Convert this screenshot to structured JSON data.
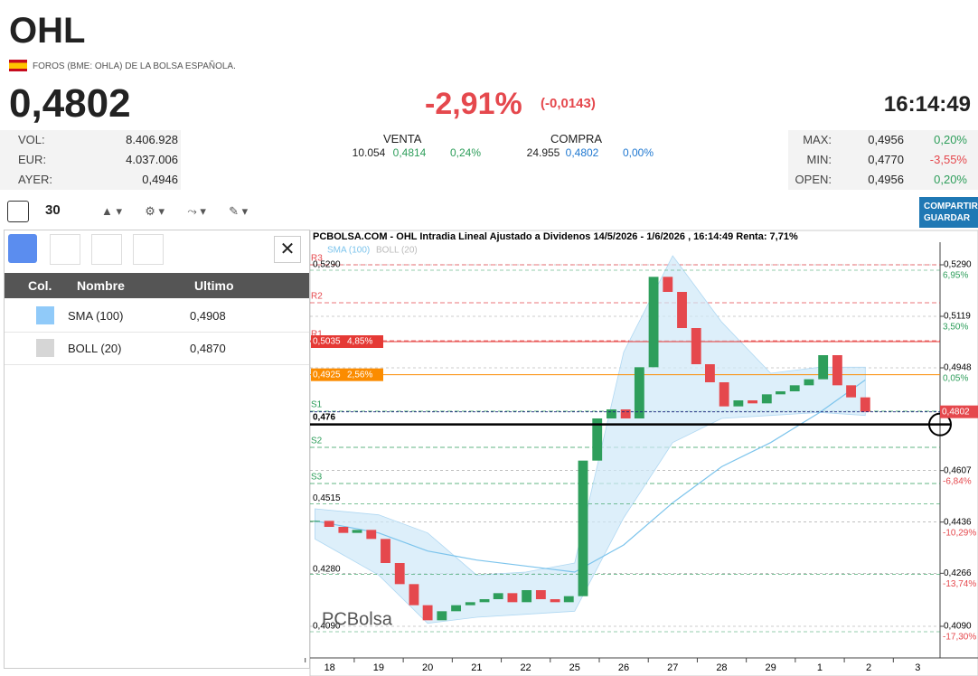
{
  "header": {
    "ticker": "OHL",
    "exchange": "FOROS (BME: OHLA) DE LA BOLSA ESPAÑOLA.",
    "price": "0,4802",
    "change_pct": "-2,91%",
    "change_abs": "(-0,0143)",
    "time": "16:14:49"
  },
  "stats_left": [
    [
      "VOL:",
      "8.406.928"
    ],
    [
      "EUR:",
      "4.037.006"
    ],
    [
      "AYER:",
      "0,4946"
    ]
  ],
  "order_book": {
    "sell_label": "VENTA",
    "buy_label": "COMPRA",
    "row": [
      "10.054",
      "0,4814",
      "0,24%",
      "24.955",
      "0,4802",
      "0,00%"
    ]
  },
  "stats_right": [
    [
      "MAX:",
      "0,4956",
      "0,20%"
    ],
    [
      "MIN:",
      "0,4770",
      "-3,55%"
    ],
    [
      "OPEN:",
      "0,4956",
      "0,20%"
    ]
  ],
  "toolbar": {
    "period": "30",
    "share_button": [
      "COMPARTIR",
      "GUARDAR"
    ]
  },
  "panel": {
    "columns": [
      "Col.",
      "Nombre",
      "Ultimo"
    ],
    "rows": [
      {
        "color": "#90caf9",
        "name": "SMA (100)",
        "last": "0,4908"
      },
      {
        "color": "#d6d6d6",
        "name": "BOLL (20)",
        "last": "0,4870"
      }
    ]
  },
  "chart_data": {
    "type": "candlestick",
    "title": "PCBOLSA.COM - OHL Intradia Lineal Ajustado a Dividenos 14/5/2026 - 1/6/2026 , 16:14:49 Renta: 7,71%",
    "legend": [
      "SMA (100)",
      "BOLL (20)"
    ],
    "xlim": [
      -0.4,
      12.4
    ],
    "xticks": [
      {
        "value": 0,
        "label": "18"
      },
      {
        "value": 1,
        "label": "19"
      },
      {
        "value": 2,
        "label": "20"
      },
      {
        "value": 3,
        "label": "21"
      },
      {
        "value": 4,
        "label": "22"
      },
      {
        "value": 5,
        "label": "25"
      },
      {
        "value": 6,
        "label": "26"
      },
      {
        "value": 7,
        "label": "27"
      },
      {
        "value": 8,
        "label": "28"
      },
      {
        "value": 9,
        "label": "29"
      },
      {
        "value": 10,
        "label": "1"
      },
      {
        "value": 11,
        "label": "2"
      },
      {
        "value": 12,
        "label": "3"
      }
    ],
    "ylim": [
      0.3994,
      0.5359
    ],
    "yticks": [
      {
        "value": 0.529,
        "label": "0,5290"
      },
      {
        "value": 0.5119,
        "label": "0,5119"
      },
      {
        "value": 0.4948,
        "label": "0,4948"
      },
      {
        "value": 0.4607,
        "label": "0,4607"
      },
      {
        "value": 0.4436,
        "label": "0,4436"
      },
      {
        "value": 0.4266,
        "label": "0,4266"
      },
      {
        "value": 0.409,
        "label": "0,4090"
      }
    ],
    "ytick_pct": [
      "6,95%",
      "3,50%",
      "0,05%",
      "-6,84%",
      "-10,29%",
      "-13,74%",
      "-17,30%"
    ],
    "x": [
      -0.3,
      -0.01,
      0.28,
      0.56,
      0.85,
      1.14,
      1.43,
      1.72,
      2.0,
      2.29,
      2.58,
      2.87,
      3.16,
      3.44,
      3.73,
      4.02,
      4.31,
      4.6,
      4.88,
      5.17,
      5.46,
      5.75,
      6.04,
      6.32,
      6.61,
      6.9,
      7.19,
      7.48,
      7.76,
      8.05,
      8.34,
      8.63,
      8.92,
      9.2,
      9.49,
      9.78,
      10.07,
      10.36,
      10.64,
      10.93
    ],
    "close": [
      0.444,
      0.442,
      0.44,
      0.441,
      0.438,
      0.43,
      0.423,
      0.416,
      0.411,
      0.414,
      0.416,
      0.417,
      0.418,
      0.42,
      0.417,
      0.421,
      0.418,
      0.417,
      0.419,
      0.464,
      0.478,
      0.481,
      0.478,
      0.495,
      0.525,
      0.52,
      0.508,
      0.496,
      0.49,
      0.482,
      0.484,
      0.483,
      0.486,
      0.487,
      0.489,
      0.491,
      0.499,
      0.489,
      0.485,
      0.4802
    ],
    "up_color": "#2e9e5b",
    "down_color": "#e5484d",
    "ind_x": [
      -0.3,
      1,
      2,
      3,
      4,
      5,
      6,
      7,
      8,
      9,
      10,
      10.93
    ],
    "sma": [
      0.444,
      0.44,
      0.434,
      0.431,
      0.429,
      0.427,
      0.436,
      0.45,
      0.462,
      0.47,
      0.48,
      0.4908
    ],
    "boll_upper": [
      0.448,
      0.446,
      0.44,
      0.426,
      0.427,
      0.43,
      0.5,
      0.532,
      0.51,
      0.493,
      0.495,
      0.495
    ],
    "boll_lower": [
      0.438,
      0.426,
      0.41,
      0.412,
      0.413,
      0.414,
      0.445,
      0.47,
      0.478,
      0.479,
      0.48,
      0.479
    ],
    "sma_color": "#7cc4ec",
    "boll_color": "#cfe8f8",
    "pivots": [
      {
        "name": "R3",
        "value": 0.529,
        "color": "#e5484d"
      },
      {
        "name": "R2",
        "value": 0.5164,
        "color": "#e5484d"
      },
      {
        "name": "R1",
        "value": 0.5038,
        "color": "#e5484d"
      },
      {
        "name": "S1",
        "value": 0.4804,
        "color": "#2e9e5b"
      },
      {
        "name": "S2",
        "value": 0.4684,
        "color": "#2e9e5b"
      },
      {
        "name": "S3",
        "value": 0.4564,
        "color": "#2e9e5b"
      }
    ],
    "price_boxes": [
      {
        "value": 0.5035,
        "label": "0,5035",
        "pct": "4,85%",
        "color": "#e53935"
      },
      {
        "value": 0.4925,
        "label": "0,4925",
        "pct": "2,56%",
        "color": "#fb8c00"
      }
    ],
    "left_levels": [
      {
        "value": 0.529,
        "label": "0,5290"
      },
      {
        "value": 0.4515,
        "label": "0,4515"
      },
      {
        "value": 0.428,
        "label": "0,4280"
      },
      {
        "value": 0.409,
        "label": "0,4090"
      }
    ],
    "cursor": {
      "value": 0.476,
      "label": "0,476"
    },
    "last": {
      "value": 0.4802,
      "label": "0,4802"
    },
    "watermark": "PCBolsa"
  }
}
